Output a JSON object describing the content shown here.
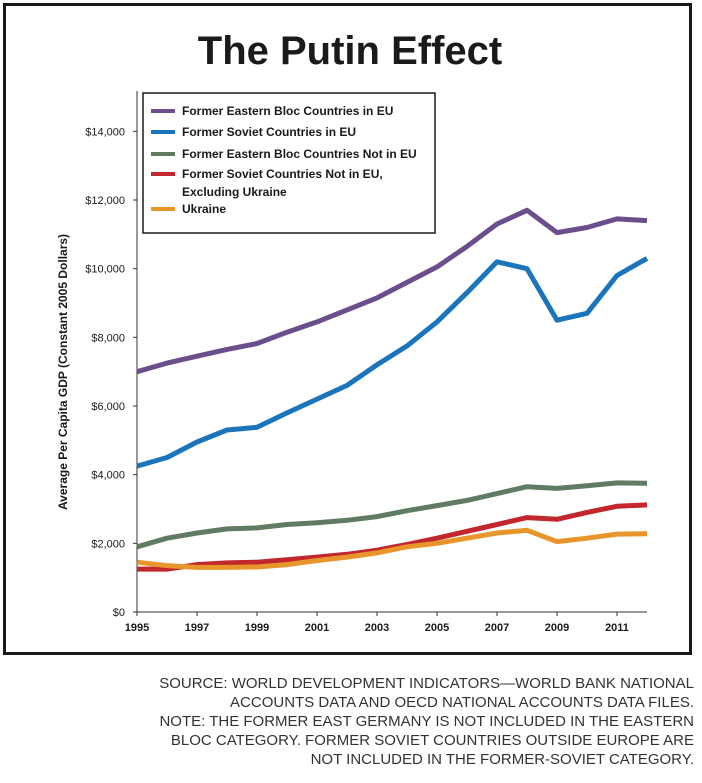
{
  "chart_data": {
    "type": "line",
    "title": "The Putin Effect",
    "ylabel": "Average Per Capita GDP (Constant 2005 Dollars)",
    "xlabel": "",
    "xlim": [
      1995,
      2012
    ],
    "ylim": [
      0,
      15000
    ],
    "x_ticks": [
      1995,
      1997,
      1999,
      2001,
      2003,
      2005,
      2007,
      2009,
      2011
    ],
    "y_ticks": [
      0,
      2000,
      4000,
      6000,
      8000,
      10000,
      12000,
      14000
    ],
    "y_tick_labels": [
      "$0",
      "$2,000",
      "$4,000",
      "$6,000",
      "$8,000",
      "$10,000",
      "$12,000",
      "$14,000"
    ],
    "legend_position": "top-left",
    "grid": false,
    "x": [
      1995,
      1996,
      1997,
      1998,
      1999,
      2000,
      2001,
      2002,
      2003,
      2004,
      2005,
      2006,
      2007,
      2008,
      2009,
      2010,
      2011,
      2012
    ],
    "series": [
      {
        "name": "Former Eastern Bloc Countries in EU",
        "color": "#6b4f8c",
        "values": [
          7000,
          7250,
          7450,
          7650,
          7820,
          8150,
          8450,
          8800,
          9150,
          9600,
          10050,
          10650,
          11300,
          11700,
          11050,
          11200,
          11450,
          11400
        ]
      },
      {
        "name": "Former Soviet Countries in EU",
        "color": "#1b75bc",
        "values": [
          4250,
          4500,
          4950,
          5300,
          5380,
          5800,
          6200,
          6600,
          7200,
          7750,
          8450,
          9300,
          10200,
          10000,
          8500,
          8700,
          9800,
          10300
        ]
      },
      {
        "name": "Former Eastern Bloc Countries Not in EU",
        "color": "#5f7b61",
        "values": [
          1900,
          2150,
          2300,
          2420,
          2450,
          2550,
          2600,
          2670,
          2780,
          2950,
          3100,
          3250,
          3450,
          3650,
          3600,
          3680,
          3760,
          3750
        ]
      },
      {
        "name": "Former Soviet Countries Not in EU, Excluding Ukraine",
        "color": "#c1272d",
        "values": [
          1250,
          1250,
          1380,
          1430,
          1450,
          1520,
          1600,
          1680,
          1800,
          1970,
          2150,
          2350,
          2550,
          2750,
          2700,
          2900,
          3080,
          3120
        ]
      },
      {
        "name": "Ukraine",
        "color": "#e8962b",
        "values": [
          1450,
          1350,
          1300,
          1300,
          1310,
          1380,
          1500,
          1600,
          1720,
          1900,
          2000,
          2150,
          2300,
          2380,
          2050,
          2150,
          2270,
          2280
        ]
      }
    ]
  },
  "legend_lines": [
    [
      "Former Eastern Bloc Countries in EU"
    ],
    [
      "Former Soviet Countries in EU"
    ],
    [
      "Former Eastern Bloc Countries Not in EU"
    ],
    [
      "Former Soviet Countries Not in EU,",
      "Excluding Ukraine"
    ],
    [
      "Ukraine"
    ]
  ],
  "notes": [
    "SOURCE: WORLD DEVELOPMENT INDICATORS—WORLD BANK NATIONAL",
    "ACCOUNTS DATA AND OECD NATIONAL ACCOUNTS DATA FILES.",
    "NOTE: THE FORMER EAST GERMANY IS NOT INCLUDED IN THE EASTERN",
    "BLOC CATEGORY. FORMER SOVIET COUNTRIES OUTSIDE EUROPE ARE",
    "NOT INCLUDED IN THE FORMER-SOVIET CATEGORY."
  ]
}
